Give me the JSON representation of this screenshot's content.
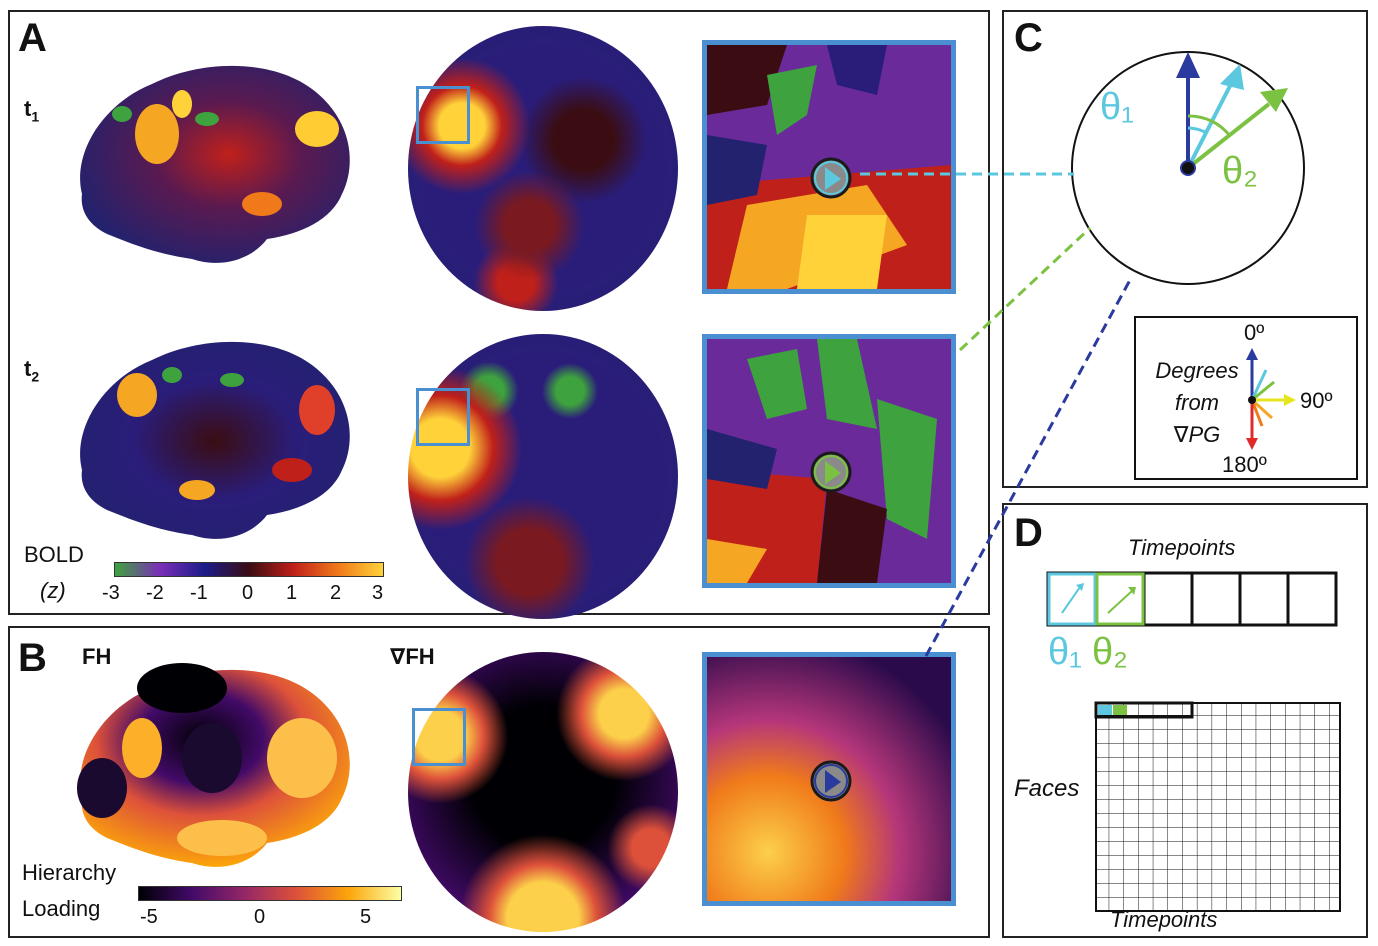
{
  "panels": {
    "A": {
      "label": "A",
      "t1": "t",
      "t1_sub": "1",
      "t2": "t",
      "t2_sub": "2",
      "colorbar": {
        "title": "BOLD",
        "unit": "(z)",
        "ticks": [
          "-3",
          "-2",
          "-1",
          "0",
          "1",
          "2",
          "3"
        ],
        "colors": [
          "#3ea33e",
          "#7b2fb8",
          "#1c1c8a",
          "#3b0d12",
          "#c0201a",
          "#f07a1a",
          "#ffd23a"
        ]
      }
    },
    "B": {
      "label": "B",
      "fh": "FH",
      "grad_fh": "∇FH",
      "colorbar": {
        "title_line1": "Hierarchy",
        "title_line2": "Loading",
        "ticks": [
          "-5",
          "0",
          "5"
        ],
        "colors": [
          "#000004",
          "#420a68",
          "#932667",
          "#dd513a",
          "#fca50a",
          "#fcffa4"
        ]
      }
    },
    "C": {
      "label": "C",
      "theta1": "θ₁",
      "theta2": "θ₂",
      "legend": {
        "line1": "Degrees",
        "line2": "from",
        "line3": "∇PG",
        "deg0": "0º",
        "deg90": "90º",
        "deg180": "180º"
      }
    },
    "D": {
      "label": "D",
      "timepoints_top": "Timepoints",
      "theta1": "θ₁",
      "theta2": "θ₂",
      "faces": "Faces",
      "timepoints_bottom": "Timepoints"
    }
  },
  "colors": {
    "blue_frame": "#4a90d0",
    "cyan": "#5bc8e0",
    "green": "#7cc242",
    "navy": "#2b3a9e"
  }
}
